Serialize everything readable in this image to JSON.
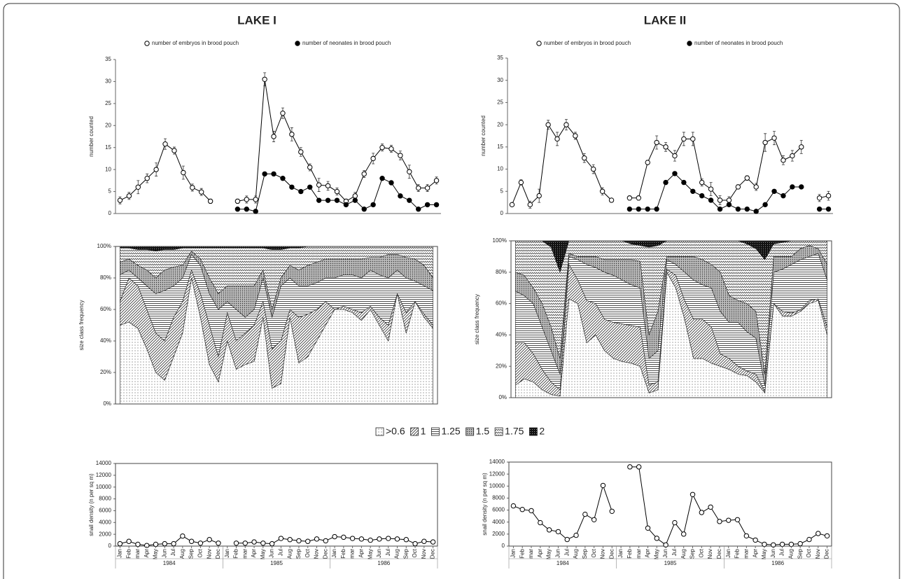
{
  "chart_data": [
    {
      "type": "line",
      "title": "LAKE I",
      "ylabel": "number counted",
      "ylim": [
        0,
        35
      ],
      "yticks": [
        0,
        5,
        10,
        15,
        20,
        25,
        30,
        35
      ],
      "series": [
        {
          "name": "number of embryos in brood pouch",
          "marker": "open",
          "color": "#000000",
          "values": [
            3,
            4,
            6,
            8,
            10,
            15.8,
            14.3,
            9.3,
            5.9,
            4.9,
            2.8,
            null,
            null,
            2.8,
            3.2,
            3.2,
            30.5,
            17.5,
            22.8,
            18,
            14,
            10.5,
            6.5,
            6.3,
            5,
            2.8,
            4,
            9,
            12.5,
            15,
            14.7,
            13.2,
            9.5,
            5.8,
            5.8,
            7.5
          ],
          "errors": [
            0.8,
            0.8,
            1.5,
            1.0,
            1.5,
            1.2,
            0.8,
            1.5,
            0.8,
            0.8,
            0.5,
            null,
            null,
            0.5,
            0.8,
            0.8,
            1.5,
            1.2,
            1.2,
            1.5,
            1.0,
            0.8,
            1.5,
            1.0,
            0.8,
            0.5,
            0.8,
            0.8,
            1.2,
            0.8,
            0.8,
            1.0,
            1.5,
            0.8,
            0.8,
            0.8
          ]
        },
        {
          "name": "number of neonates in brood pouch",
          "marker": "filled",
          "color": "#000000",
          "values": [
            null,
            null,
            null,
            null,
            null,
            null,
            null,
            null,
            null,
            null,
            null,
            null,
            null,
            1,
            1,
            0.5,
            9,
            9,
            8,
            6,
            5,
            6,
            3,
            3,
            3,
            2,
            3,
            1,
            2,
            8,
            7,
            4,
            3,
            1,
            2,
            2
          ]
        }
      ]
    },
    {
      "type": "line",
      "title": "LAKE II",
      "ylabel": "number counted",
      "ylim": [
        0,
        35
      ],
      "yticks": [
        0,
        5,
        10,
        15,
        20,
        25,
        30,
        35
      ],
      "series": [
        {
          "name": "number of embryos in brood pouch",
          "marker": "open",
          "color": "#000000",
          "values": [
            2,
            7,
            2,
            4,
            20,
            16.8,
            20,
            17.5,
            12.5,
            10,
            5,
            3,
            null,
            3.5,
            3.5,
            11.5,
            16,
            15,
            13,
            16.8,
            16.8,
            7,
            5.5,
            3,
            3,
            6,
            8,
            6,
            16,
            17,
            12,
            13,
            15,
            null,
            3.5,
            4
          ],
          "errors": [
            0.3,
            0.6,
            0.8,
            1.5,
            1.0,
            1.5,
            1.2,
            0.8,
            1.0,
            1.0,
            0.8,
            0.3,
            null,
            0.5,
            0.5,
            0.5,
            1.5,
            1.0,
            1.2,
            1.5,
            1.5,
            0.8,
            1.5,
            1.0,
            0.8,
            0.5,
            0.5,
            0.8,
            2.0,
            1.5,
            1.0,
            1.2,
            1.5,
            null,
            0.8,
            1.0
          ]
        },
        {
          "name": "number of neonates in brood pouch",
          "marker": "filled",
          "color": "#000000",
          "values": [
            null,
            null,
            null,
            null,
            null,
            null,
            null,
            null,
            null,
            null,
            null,
            null,
            null,
            1,
            1,
            1,
            1,
            7,
            9,
            7,
            5,
            4,
            3,
            1,
            2,
            1,
            1,
            0.5,
            2,
            5,
            4,
            6,
            6,
            null,
            1,
            1
          ]
        }
      ]
    },
    {
      "type": "stacked_area",
      "ylabel": "size class frequency",
      "ylim": [
        0,
        100
      ],
      "yticks": [
        {
          "value": 0,
          "label": "0%"
        },
        {
          "value": 20,
          "label": "20%"
        },
        {
          "value": 40,
          "label": "40%"
        },
        {
          "value": 60,
          "label": "60%"
        },
        {
          "value": 80,
          "label": "80%"
        },
        {
          "value": 100,
          "label": "100%"
        }
      ],
      "series": [
        {
          "name": ">0.6",
          "pattern": "dots",
          "values": [
            50,
            52,
            48,
            35,
            20,
            15,
            30,
            45,
            80,
            55,
            25,
            14,
            40,
            22,
            25,
            27,
            55,
            10,
            13,
            55,
            26,
            30,
            40,
            50,
            60,
            60,
            58,
            53,
            60,
            50,
            40,
            70,
            45,
            65,
            55,
            48
          ]
        },
        {
          "name": "1",
          "pattern": "diagonal",
          "values": [
            15,
            28,
            27,
            25,
            25,
            25,
            25,
            20,
            5,
            15,
            25,
            16,
            18,
            18,
            20,
            23,
            10,
            25,
            27,
            5,
            29,
            27,
            20,
            15,
            0,
            2,
            2,
            5,
            2,
            5,
            10,
            0,
            13,
            0,
            2,
            2
          ]
        },
        {
          "name": "1.25",
          "pattern": "horizontal",
          "values": [
            17,
            5,
            5,
            15,
            25,
            32,
            20,
            15,
            10,
            18,
            20,
            30,
            7,
            20,
            10,
            10,
            15,
            20,
            35,
            20,
            20,
            18,
            17,
            15,
            20,
            20,
            22,
            22,
            23,
            27,
            30,
            15,
            22,
            13,
            18,
            22
          ]
        },
        {
          "name": "1.5",
          "pattern": "grid",
          "values": [
            8,
            7,
            8,
            10,
            10,
            13,
            12,
            8,
            2,
            4,
            10,
            10,
            10,
            15,
            20,
            15,
            5,
            5,
            5,
            8,
            10,
            13,
            13,
            12,
            12,
            10,
            10,
            12,
            8,
            11,
            15,
            10,
            13,
            14,
            13,
            8
          ]
        },
        {
          "name": "1.75",
          "pattern": "zigzag",
          "values": [
            9,
            7,
            10,
            13,
            17,
            13,
            11,
            11,
            2,
            7,
            19,
            29,
            24,
            24,
            24,
            24,
            14,
            38,
            18,
            11,
            14,
            12,
            10,
            8,
            8,
            8,
            8,
            8,
            7,
            7,
            5,
            5,
            7,
            8,
            12,
            20
          ]
        },
        {
          "name": "2",
          "pattern": "dark",
          "values": [
            1,
            1,
            2,
            2,
            3,
            2,
            2,
            1,
            1,
            1,
            1,
            1,
            1,
            1,
            1,
            1,
            1,
            2,
            2,
            1,
            1,
            0,
            0,
            0,
            0,
            0,
            0,
            0,
            0,
            0,
            0,
            0,
            0,
            0,
            0,
            0
          ]
        }
      ]
    },
    {
      "type": "stacked_area",
      "ylabel": "size class frequency",
      "ylim": [
        0,
        100
      ],
      "yticks": [
        {
          "value": 0,
          "label": "0%"
        },
        {
          "value": 20,
          "label": "20%"
        },
        {
          "value": 40,
          "label": "40%"
        },
        {
          "value": 60,
          "label": "60%"
        },
        {
          "value": 80,
          "label": "80%"
        },
        {
          "value": 100,
          "label": "100%"
        }
      ],
      "series": [
        {
          "pattern": "dots",
          "values": [
            8,
            12,
            10,
            5,
            2,
            1,
            63,
            60,
            35,
            40,
            30,
            25,
            23,
            22,
            20,
            3,
            5,
            80,
            70,
            50,
            25,
            25,
            22,
            20,
            18,
            15,
            14,
            10,
            3,
            60,
            52,
            52,
            55,
            60,
            62,
            40
          ]
        },
        {
          "pattern": "diagonal",
          "values": [
            27,
            23,
            18,
            13,
            8,
            4,
            22,
            15,
            27,
            20,
            20,
            23,
            24,
            24,
            25,
            5,
            5,
            2,
            8,
            12,
            25,
            25,
            23,
            8,
            7,
            5,
            3,
            5,
            1,
            0,
            3,
            2,
            1,
            2,
            1,
            5
          ]
        },
        {
          "pattern": "horizontal",
          "values": [
            33,
            30,
            32,
            27,
            20,
            10,
            5,
            13,
            23,
            23,
            30,
            30,
            28,
            26,
            25,
            17,
            20,
            6,
            7,
            18,
            25,
            22,
            25,
            27,
            23,
            28,
            25,
            23,
            4,
            20,
            27,
            31,
            32,
            28,
            29,
            30
          ]
        },
        {
          "pattern": "grid",
          "values": [
            12,
            13,
            10,
            15,
            15,
            10,
            2,
            2,
            5,
            7,
            8,
            10,
            13,
            16,
            17,
            15,
            25,
            2,
            5,
            10,
            15,
            16,
            15,
            25,
            17,
            14,
            18,
            17,
            7,
            10,
            8,
            5,
            7,
            7,
            3,
            10
          ]
        },
        {
          "pattern": "zigzag",
          "values": [
            20,
            22,
            30,
            40,
            51,
            55,
            8,
            10,
            10,
            10,
            12,
            12,
            12,
            10,
            10,
            56,
            42,
            10,
            10,
            10,
            10,
            12,
            15,
            20,
            35,
            38,
            38,
            40,
            73,
            8,
            9,
            10,
            5,
            3,
            5,
            15
          ]
        },
        {
          "pattern": "dark",
          "values": [
            0,
            0,
            0,
            0,
            4,
            20,
            0,
            0,
            0,
            0,
            0,
            0,
            0,
            2,
            3,
            4,
            3,
            0,
            0,
            0,
            0,
            0,
            0,
            0,
            0,
            0,
            2,
            5,
            12,
            2,
            1,
            0,
            0,
            0,
            0,
            0
          ]
        }
      ]
    },
    {
      "type": "line",
      "ylabel": "snail density (n per sq m)",
      "ylim": [
        0,
        14000
      ],
      "yticks": [
        0,
        2000,
        4000,
        6000,
        8000,
        10000,
        12000,
        14000
      ],
      "categories": [
        "Jan",
        "Feb",
        "mar",
        "Apr",
        "May",
        "Jun",
        "Jul",
        "Aug",
        "Sep",
        "Oct",
        "Nov",
        "Dec",
        "Jan",
        "Feb",
        "mar",
        "Apr",
        "May",
        "Jun",
        "Jul",
        "Aug",
        "Sep",
        "Oct",
        "Nov",
        "Dec",
        "Jan",
        "Feb",
        "mar",
        "Apr",
        "May",
        "Jun",
        "Jul",
        "Aug",
        "Sep",
        "Oct",
        "Nov",
        "Dec"
      ],
      "x_groups": [
        "1984",
        "1985",
        "1986"
      ],
      "series": [
        {
          "marker": "open",
          "color": "#000000",
          "values": [
            400,
            800,
            300,
            100,
            300,
            400,
            400,
            1700,
            800,
            500,
            1100,
            500,
            null,
            500,
            500,
            700,
            500,
            400,
            1300,
            1100,
            900,
            800,
            1200,
            900,
            1600,
            1500,
            1300,
            1200,
            1000,
            1200,
            1300,
            1200,
            1100,
            400,
            800,
            700
          ]
        }
      ]
    },
    {
      "type": "line",
      "ylabel": "snail density (n per sq m)",
      "ylim": [
        0,
        14000
      ],
      "yticks": [
        0,
        2000,
        4000,
        6000,
        8000,
        10000,
        12000,
        14000
      ],
      "categories": [
        "Jan",
        "Feb",
        "mar",
        "Apr",
        "May",
        "Jun",
        "Jul",
        "Aug",
        "Sep",
        "Oct",
        "Nov",
        "Dec",
        "Jan",
        "Feb",
        "mar",
        "Apr",
        "May",
        "Jun",
        "Jul",
        "Aug",
        "Sep",
        "Oct",
        "Nov",
        "Dec",
        "Jan",
        "Feb",
        "mar",
        "Apr",
        "May",
        "Jun",
        "Jul",
        "Aug",
        "Sep",
        "Oct",
        "Nov",
        "Dec"
      ],
      "x_groups": [
        "1984",
        "1985",
        "1986"
      ],
      "series": [
        {
          "marker": "open",
          "color": "#000000",
          "values": [
            6700,
            6100,
            5900,
            3900,
            2700,
            2400,
            1100,
            1800,
            5300,
            4400,
            10100,
            5800,
            null,
            13200,
            13200,
            3000,
            1300,
            200,
            3900,
            2000,
            8600,
            5600,
            6500,
            4100,
            4300,
            4400,
            1700,
            1000,
            300,
            200,
            300,
            300,
            400,
            1100,
            2100,
            1700
          ]
        }
      ]
    }
  ]
}
